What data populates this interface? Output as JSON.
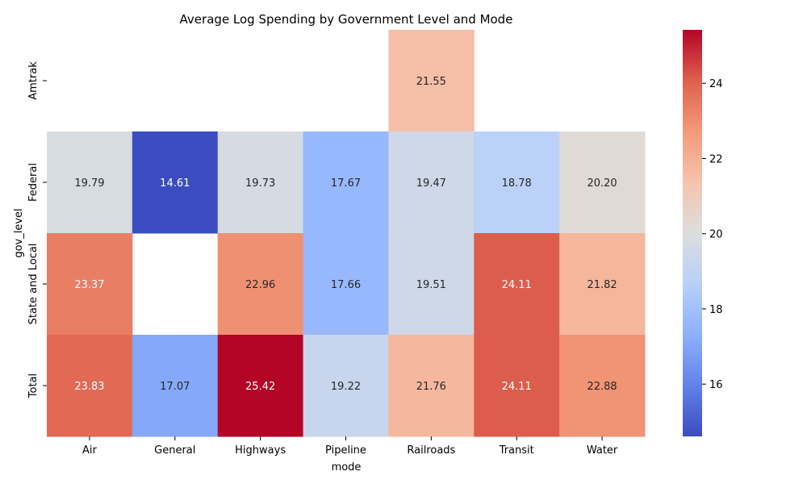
{
  "chart_data": {
    "type": "heatmap",
    "title": "Average Log Spending by Government Level and Mode",
    "xlabel": "mode",
    "ylabel": "gov_level",
    "x_categories": [
      "Air",
      "General",
      "Highways",
      "Pipeline",
      "Railroads",
      "Transit",
      "Water"
    ],
    "y_categories": [
      "Amtrak",
      "Federal",
      "State and Local",
      "Total"
    ],
    "values": [
      [
        null,
        null,
        null,
        null,
        21.55,
        null,
        null
      ],
      [
        19.79,
        14.61,
        19.73,
        17.67,
        19.47,
        18.78,
        20.2
      ],
      [
        23.37,
        null,
        22.96,
        17.66,
        19.51,
        24.11,
        21.82
      ],
      [
        23.83,
        17.07,
        25.42,
        19.22,
        21.76,
        24.11,
        22.88
      ]
    ],
    "value_format": "2 decimals",
    "colormap": "coolwarm",
    "vmin": 14.61,
    "vmax": 25.42,
    "colorbar_ticks": [
      16,
      18,
      20,
      22,
      24
    ],
    "missing_cells": "blank",
    "grid": false,
    "legend": "colorbar right"
  }
}
